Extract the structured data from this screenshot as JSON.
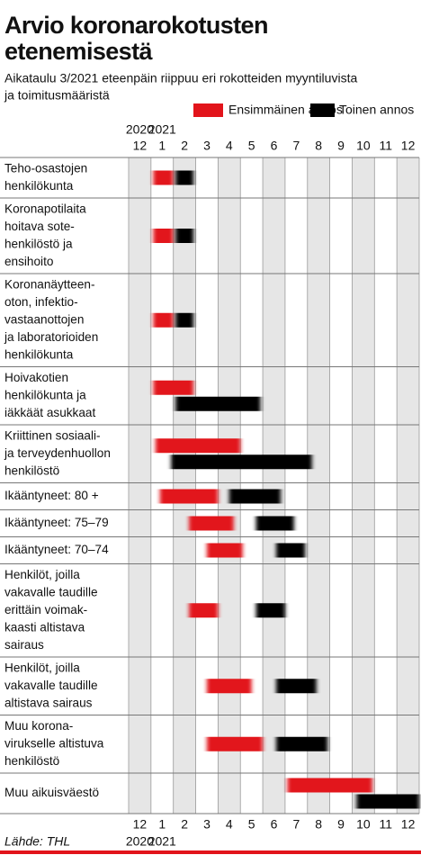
{
  "chart_data": {
    "type": "gantt",
    "title": [
      "Arvio koronarokotusten",
      "etenemisestä"
    ],
    "subtitle": [
      "Aikataulu 3/2021 eteenpäin riippuu eri rokotteiden myyntiluvista",
      "ja toimitusmääristä"
    ],
    "source": "Lähde: THL",
    "categories": [
      [
        "Teho-osastojen",
        "henkilökunta"
      ],
      [
        "Koronapotilaita",
        "hoitava sote-",
        "henkilöstö ja",
        "ensihoito"
      ],
      [
        "Koronanäytteen-",
        "oton, infektio-",
        "vastaanottojen",
        "ja laboratorioiden",
        "henkilökunta"
      ],
      [
        "Hoivakotien",
        "henkilökunta ja",
        "iäkkäät asukkaat"
      ],
      [
        "Kriittinen sosiaali-",
        "ja terveydenhuollon",
        "henkilöstö"
      ],
      [
        "Ikääntyneet: 80 +"
      ],
      [
        "Ikääntyneet: 75–79"
      ],
      [
        "Ikääntyneet: 70–74"
      ],
      [
        "Henkilöt, joilla",
        "vakavalle taudille",
        "erittäin voimak-",
        "kaasti altistava",
        "sairaus"
      ],
      [
        "Henkilöt, joilla",
        "vakavalle taudille",
        "altistava sairaus"
      ],
      [
        "Muu korona-",
        "virukselle altistuva",
        "henkilöstö"
      ],
      [
        "Muu aikuisväestö"
      ]
    ],
    "series": [
      {
        "name": "Ensimmäinen annos",
        "color": "#e2141b",
        "values": [
          [
            1.1,
            2.0
          ],
          [
            1.1,
            2.0
          ],
          [
            1.1,
            2.0
          ],
          [
            1.1,
            2.9
          ],
          [
            1.2,
            5.0
          ],
          [
            1.4,
            4.0
          ],
          [
            2.7,
            4.7
          ],
          [
            3.5,
            5.1
          ],
          [
            2.7,
            4.0
          ],
          [
            3.5,
            5.5
          ],
          [
            3.5,
            6.0
          ],
          [
            7.1,
            10.9
          ]
        ]
      },
      {
        "name": "Toinen annos",
        "color": "#000000",
        "values": [
          [
            2.1,
            2.9
          ],
          [
            2.1,
            2.9
          ],
          [
            2.1,
            2.9
          ],
          [
            2.1,
            5.9
          ],
          [
            1.9,
            8.2
          ],
          [
            4.5,
            6.8
          ],
          [
            5.7,
            7.4
          ],
          [
            6.6,
            7.9
          ],
          [
            5.7,
            7.0
          ],
          [
            6.6,
            8.4
          ],
          [
            6.6,
            8.9
          ],
          [
            10.2,
            13.0
          ]
        ]
      }
    ],
    "xlim": [
      0,
      13
    ],
    "xticks": [
      {
        "value": 0.5,
        "label": "12"
      },
      {
        "value": 1.5,
        "label": "1"
      },
      {
        "value": 2.5,
        "label": "2"
      },
      {
        "value": 3.5,
        "label": "3"
      },
      {
        "value": 4.5,
        "label": "4"
      },
      {
        "value": 5.5,
        "label": "5"
      },
      {
        "value": 6.5,
        "label": "6"
      },
      {
        "value": 7.5,
        "label": "7"
      },
      {
        "value": 8.5,
        "label": "8"
      },
      {
        "value": 9.5,
        "label": "9"
      },
      {
        "value": 10.5,
        "label": "10"
      },
      {
        "value": 11.5,
        "label": "11"
      },
      {
        "value": 12.5,
        "label": "12"
      }
    ],
    "years": [
      {
        "value": 0.5,
        "label": "2020"
      },
      {
        "value": 1.5,
        "label": "2021"
      }
    ]
  }
}
